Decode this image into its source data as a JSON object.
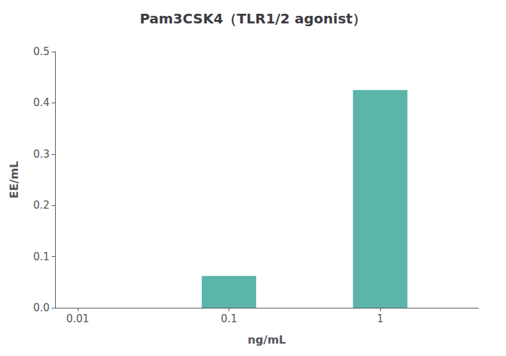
{
  "chart_data": {
    "type": "bar",
    "title": "Pam3CSK4（TLR1/2 agonist）",
    "xlabel": "ng/mL",
    "ylabel": "EE/mL",
    "x": [
      0.01,
      0.1,
      1
    ],
    "values": [
      0,
      0.062,
      0.425
    ],
    "color": "#5BB5A8",
    "log": "x",
    "xlim": [
      0.00707945784384138,
      4.46683592150963
    ],
    "xticks": [
      0.01,
      0.1,
      1
    ],
    "ylim": [
      0,
      0.5
    ],
    "yticks": [
      {
        "value": 0,
        "label": "0.0"
      },
      0.1,
      0.2,
      0.3,
      0.4,
      0.5
    ],
    "grid": false
  }
}
